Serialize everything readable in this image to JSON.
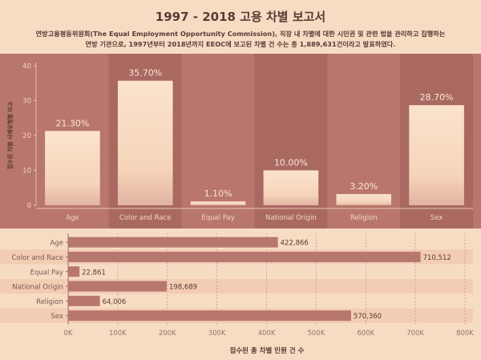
{
  "header": {
    "title": "1997 - 2018 고용 차별 보고서",
    "desc_line1": "연방고용평등위원회(The Equal Employment Opportunity Commission), 직장 내 차별에 대한 시민권 및 관련 법을 관리하고 집행하는",
    "desc_line2": "연방 기관으로, 1997년부터 2018년까지 EEOC에 보고된 차별 건 수는 총 1,889,631건이라고 발표하였다."
  },
  "colors": {
    "band": "#b9766d",
    "stripe": "#a96961",
    "bar_top": "#fbe3cc",
    "bar_bottom": "#b8776e",
    "page": "#f7dcc4",
    "text_dark": "#5a3a35"
  },
  "chart_data": [
    {
      "type": "bar",
      "categories": [
        "Age",
        "Color and Race",
        "Equal Pay",
        "National Origin",
        "Religion",
        "Sex"
      ],
      "values": [
        21.3,
        35.7,
        1.1,
        10.0,
        3.2,
        28.7
      ],
      "data_labels": [
        "21.30%",
        "35.70%",
        "1.10%",
        "10.00%",
        "3.20%",
        "28.70%"
      ],
      "ylabel": "접수된 차별 사례유형별 비교",
      "ylim": [
        0,
        40
      ],
      "yticks": [
        0,
        10,
        20,
        30,
        40
      ],
      "grid": false
    },
    {
      "type": "bar",
      "orientation": "horizontal",
      "categories": [
        "Age",
        "Color and Race",
        "Equal Pay",
        "National Origin",
        "Religion",
        "Sex"
      ],
      "values": [
        422866,
        710512,
        22861,
        198689,
        64006,
        570360
      ],
      "data_labels": [
        "422,866",
        "710,512",
        "22,861",
        "198,689",
        "64,006",
        "570,360"
      ],
      "xlabel": "접수된 총 차별 민원 건 수",
      "xlim": [
        0,
        800000
      ],
      "xticks": [
        0,
        100000,
        200000,
        300000,
        400000,
        500000,
        600000,
        700000,
        800000
      ],
      "xtick_labels": [
        "0K",
        "100K",
        "200K",
        "300K",
        "400K",
        "500K",
        "600K",
        "700K",
        "800K"
      ],
      "grid": true
    }
  ]
}
